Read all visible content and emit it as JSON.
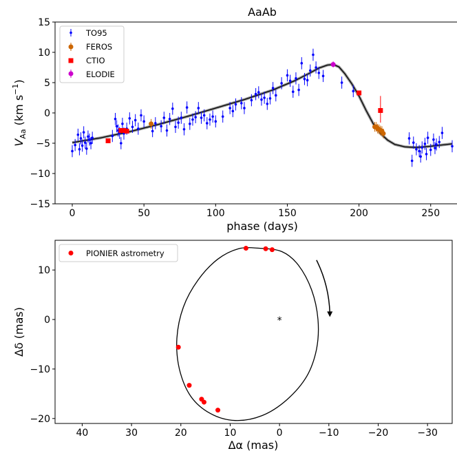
{
  "chart_data": [
    {
      "type": "scatter",
      "title": "AaAb",
      "xlabel": "phase (days)",
      "ylabel_main": "V",
      "ylabel_sub": "Aa",
      "ylabel_units_pre": " (km s",
      "ylabel_units_sup": "−1",
      "ylabel_units_post": ")",
      "xlim": [
        -12,
        277
      ],
      "ylim": [
        -15,
        15
      ],
      "xticks": [
        0,
        50,
        100,
        150,
        200,
        250
      ],
      "yticks": [
        -15,
        -10,
        -5,
        0,
        5,
        10,
        15
      ],
      "xtick_labels": [
        "0",
        "50",
        "100",
        "150",
        "200",
        "250"
      ],
      "ytick_labels": [
        "−15",
        "−10",
        "−5",
        "0",
        "5",
        "10",
        "15"
      ],
      "legend_position": "top-left",
      "grid": false,
      "model_curve": {
        "color": "#000000",
        "x": [
          0,
          20,
          40,
          60,
          80,
          100,
          120,
          140,
          155,
          165,
          172,
          178,
          182,
          186,
          190,
          195,
          200,
          205,
          210,
          215,
          220,
          225,
          232,
          240,
          250,
          265
        ],
        "y": [
          -4.9,
          -4.1,
          -3.1,
          -1.9,
          -0.6,
          0.8,
          2.2,
          3.8,
          5.3,
          6.5,
          7.4,
          7.9,
          8.0,
          7.6,
          6.5,
          4.8,
          2.8,
          0.4,
          -1.8,
          -3.4,
          -4.5,
          -5.2,
          -5.6,
          -5.7,
          -5.5,
          -5.1
        ]
      },
      "series": [
        {
          "name": "TO95",
          "color": "#0000ff",
          "marker": "point",
          "x": [
            0,
            2,
            4,
            5,
            6,
            7,
            8,
            9,
            10,
            11,
            12,
            13,
            14,
            28,
            30,
            31,
            32,
            33,
            34,
            35,
            36,
            38,
            40,
            42,
            44,
            46,
            48,
            50,
            56,
            58,
            62,
            64,
            66,
            68,
            70,
            72,
            74,
            76,
            78,
            80,
            82,
            84,
            86,
            88,
            90,
            92,
            94,
            96,
            98,
            100,
            105,
            110,
            112,
            114,
            118,
            120,
            125,
            128,
            130,
            132,
            134,
            136,
            138,
            140,
            142,
            146,
            150,
            152,
            154,
            156,
            158,
            160,
            162,
            164,
            166,
            168,
            170,
            172,
            175,
            188,
            196,
            235,
            237,
            238,
            240,
            242,
            243,
            244,
            246,
            247,
            248,
            250,
            252,
            253,
            254,
            256,
            258,
            265
          ],
          "y": [
            -6.3,
            -5.3,
            -3.6,
            -6.0,
            -4.2,
            -5.4,
            -3.2,
            -4.9,
            -5.9,
            -3.9,
            -4.4,
            -5.0,
            -4.1,
            -3.8,
            -1.0,
            -2.2,
            -2.9,
            -3.3,
            -5.0,
            -1.8,
            -3.4,
            -2.6,
            -0.9,
            -2.3,
            -1.2,
            -2.6,
            -0.4,
            -1.4,
            -3.0,
            -1.7,
            -2.2,
            -0.8,
            -2.9,
            -1.0,
            0.7,
            -2.3,
            -1.6,
            -0.8,
            -2.7,
            0.9,
            -1.8,
            -1.1,
            -0.7,
            0.8,
            -0.8,
            -0.4,
            -1.7,
            -1.1,
            -0.6,
            -1.4,
            -0.6,
            0.8,
            0.3,
            1.4,
            1.6,
            0.8,
            2.1,
            3.1,
            3.4,
            2.2,
            2.5,
            1.5,
            2.4,
            4.1,
            2.9,
            4.9,
            6.2,
            5.3,
            3.5,
            5.7,
            3.8,
            8.2,
            5.6,
            5.4,
            7.0,
            9.6,
            7.5,
            6.6,
            6.1,
            5.0,
            3.6,
            -4.2,
            -7.9,
            -4.9,
            -6.0,
            -6.3,
            -7.2,
            -5.7,
            -5.1,
            -6.8,
            -4.1,
            -6.1,
            -4.4,
            -5.8,
            -5.2,
            -4.8,
            -3.3,
            -5.5
          ],
          "yerr": 1.0
        },
        {
          "name": "FEROS",
          "color": "#cc6600",
          "marker": "circle",
          "x": [
            55,
            211,
            212,
            213,
            214,
            215,
            216,
            217
          ],
          "y": [
            -1.8,
            -2.3,
            -2.3,
            -2.6,
            -2.7,
            -2.9,
            -3.0,
            -3.4
          ],
          "yerr": 0.8
        },
        {
          "name": "CTIO",
          "color": "#ff0000",
          "marker": "square",
          "x": [
            25,
            34,
            36,
            38,
            200,
            215
          ],
          "y": [
            -4.6,
            -2.9,
            -2.9,
            -3.0,
            3.3,
            0.4
          ],
          "yerr": 0.3,
          "yerr_points": [
            null,
            null,
            null,
            null,
            null,
            [
              -1.6,
              2.8
            ]
          ]
        },
        {
          "name": "ELODIE",
          "color": "#cc00cc",
          "marker": "circle",
          "x": [
            182
          ],
          "y": [
            8.0
          ],
          "yerr": 0.5
        }
      ]
    },
    {
      "type": "scatter",
      "xlabel": "Δα (mas)",
      "ylabel": "Δδ (mas)",
      "xlim": [
        45.5,
        -35
      ],
      "ylim": [
        -21,
        16
      ],
      "xticks": [
        40,
        30,
        20,
        10,
        0,
        -10,
        -20,
        -30
      ],
      "yticks": [
        -20,
        -10,
        0,
        10
      ],
      "xtick_labels": [
        "40",
        "30",
        "20",
        "10",
        "0",
        "−10",
        "−20",
        "−30"
      ],
      "ytick_labels": [
        "−20",
        "−10",
        "0",
        "10"
      ],
      "legend_position": "top-left",
      "grid": false,
      "center_mark": {
        "x": 0,
        "y": 0,
        "symbol": "*"
      },
      "orbit": {
        "center_x": 7.0,
        "center_y": -2.0,
        "points": [
          [
            4.1,
            14.4
          ],
          [
            -0.5,
            13.7
          ],
          [
            -3.8,
            11.0
          ],
          [
            -6.5,
            6.0
          ],
          [
            -7.8,
            0.0
          ],
          [
            -7.5,
            -6.0
          ],
          [
            -5.5,
            -11.5
          ],
          [
            -1.5,
            -16.2
          ],
          [
            3.5,
            -19.4
          ],
          [
            9.0,
            -20.4
          ],
          [
            14.0,
            -19.0
          ],
          [
            18.0,
            -15.5
          ],
          [
            20.3,
            -10.0
          ],
          [
            20.8,
            -3.8
          ],
          [
            19.5,
            2.5
          ],
          [
            16.5,
            8.0
          ],
          [
            12.5,
            12.2
          ],
          [
            8.3,
            14.3
          ],
          [
            4.1,
            14.4
          ]
        ]
      },
      "arrow": {
        "points": [
          [
            -7.5,
            12.0
          ],
          [
            -10.0,
            7.0
          ],
          [
            -10.2,
            0.5
          ]
        ]
      },
      "series": [
        {
          "name": "PIONIER astrometry",
          "color": "#ff0000",
          "marker": "circle",
          "x": [
            6.8,
            2.8,
            1.5,
            20.5,
            18.3,
            15.8,
            15.3,
            12.5
          ],
          "y": [
            14.4,
            14.3,
            14.1,
            -5.6,
            -13.3,
            -16.1,
            -16.7,
            -18.3
          ]
        }
      ]
    }
  ]
}
